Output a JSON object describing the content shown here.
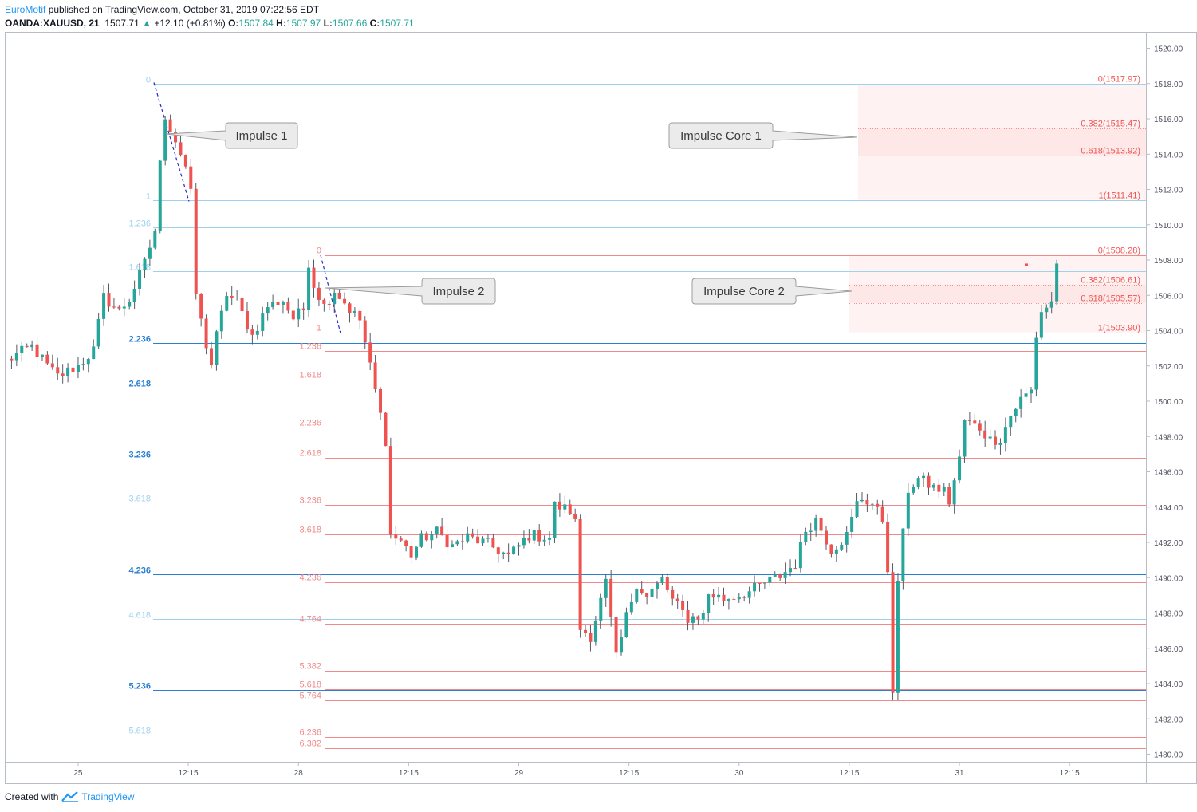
{
  "header": {
    "publisher": "EuroMotif",
    "published_text": " published on TradingView.com, October 31, 2019 07:22:56 EDT",
    "symbol": "OANDA:XAUUSD, 21",
    "last": "1507.71",
    "change": "+12.10 (+0.81%)",
    "o_label": "O:",
    "o": "1507.84",
    "h_label": "H:",
    "h": "1507.97",
    "l_label": "L:",
    "l": "1507.66",
    "c_label": "C:",
    "c": "1507.71"
  },
  "footer": {
    "created_with": "Created with",
    "brand": "TradingView"
  },
  "colors": {
    "up": "#26a69a",
    "down": "#ef5350",
    "fib1_strong": "#2a7fd0",
    "fib1_light": "#9fd1ef",
    "fib2": "#f08a8a",
    "core_fill": "#fde7e7"
  },
  "chart_data": {
    "type": "candlestick",
    "ylim": [
      1479.5,
      1520.5
    ],
    "y_ticks": [
      "1480.00",
      "1482.00",
      "1484.00",
      "1486.00",
      "1488.00",
      "1490.00",
      "1492.00",
      "1494.00",
      "1496.00",
      "1498.00",
      "1500.00",
      "1502.00",
      "1504.00",
      "1506.00",
      "1508.00",
      "1510.00",
      "1512.00",
      "1514.00",
      "1516.00",
      "1518.00",
      "1520.00"
    ],
    "x_ticks": [
      "25",
      "12:15",
      "28",
      "12:15",
      "29",
      "12:15",
      "30",
      "12:15",
      "31",
      "12:15"
    ],
    "fib_impulse_1": {
      "color_strong": "#2a7fd0",
      "color_light": "#9fd1ef",
      "levels": [
        {
          "label": "0",
          "price": 1517.97,
          "strong": false
        },
        {
          "label": "1",
          "price": 1511.41,
          "strong": false
        },
        {
          "label": "1.236",
          "price": 1509.86,
          "strong": false
        },
        {
          "label": "1.618",
          "price": 1507.36,
          "strong": false
        },
        {
          "label": "2.236",
          "price": 1503.3,
          "strong": true
        },
        {
          "label": "2.618",
          "price": 1500.79,
          "strong": true
        },
        {
          "label": "3.236",
          "price": 1496.74,
          "strong": true
        },
        {
          "label": "3.618",
          "price": 1494.24,
          "strong": false
        },
        {
          "label": "4.236",
          "price": 1490.18,
          "strong": true
        },
        {
          "label": "4.618",
          "price": 1487.67,
          "strong": false
        },
        {
          "label": "5.236",
          "price": 1483.62,
          "strong": true
        },
        {
          "label": "5.618",
          "price": 1481.11,
          "strong": false
        }
      ]
    },
    "fib_impulse_2": {
      "color": "#f08a8a",
      "levels": [
        {
          "label": "0",
          "price": 1508.28
        },
        {
          "label": "1",
          "price": 1503.9
        },
        {
          "label": "1.236",
          "price": 1502.87
        },
        {
          "label": "1.618",
          "price": 1501.2
        },
        {
          "label": "2.236",
          "price": 1498.49
        },
        {
          "label": "2.618",
          "price": 1496.81
        },
        {
          "label": "3.236",
          "price": 1494.11
        },
        {
          "label": "3.618",
          "price": 1492.43
        },
        {
          "label": "4.236",
          "price": 1489.73
        },
        {
          "label": "4.764",
          "price": 1487.41
        },
        {
          "label": "5.382",
          "price": 1484.71
        },
        {
          "label": "5.618",
          "price": 1483.67
        },
        {
          "label": "5.764",
          "price": 1483.03
        },
        {
          "label": "6.236",
          "price": 1480.97
        },
        {
          "label": "6.382",
          "price": 1480.33
        }
      ]
    },
    "core_1": [
      {
        "label": "0(1517.97)",
        "price": 1517.97
      },
      {
        "label": "0.382(1515.47)",
        "price": 1515.47
      },
      {
        "label": "0.618(1513.92)",
        "price": 1513.92
      },
      {
        "label": "1(1511.41)",
        "price": 1511.41
      }
    ],
    "core_2": [
      {
        "label": "0(1508.28)",
        "price": 1508.28
      },
      {
        "label": "0.382(1506.61)",
        "price": 1506.61
      },
      {
        "label": "0.618(1505.57)",
        "price": 1505.57
      },
      {
        "label": "1(1503.90)",
        "price": 1503.9
      }
    ],
    "callouts": [
      "Impulse 1",
      "Impulse 2",
      "Impulse Core 1",
      "Impulse Core 2"
    ],
    "anchors": [
      {
        "label": "25",
        "candle": 14
      },
      {
        "label": "28",
        "candle": 57
      },
      {
        "label": "29",
        "candle": 100
      },
      {
        "label": "30",
        "candle": 143
      },
      {
        "label": "31",
        "candle": 186
      }
    ],
    "price_path": [
      [
        0,
        1502.3
      ],
      [
        5,
        1503.1
      ],
      [
        8,
        1502.0
      ],
      [
        10,
        1501.4
      ],
      [
        14,
        1502.0
      ],
      [
        17,
        1502.9
      ],
      [
        19,
        1505.9
      ],
      [
        22,
        1505.1
      ],
      [
        24,
        1505.8
      ],
      [
        27,
        1507.8
      ],
      [
        29,
        1509.7
      ],
      [
        30,
        1513.4
      ],
      [
        31,
        1516.2
      ],
      [
        33,
        1514.8
      ],
      [
        35,
        1513.3
      ],
      [
        36,
        1511.7
      ],
      [
        37,
        1506.1
      ],
      [
        38,
        1504.5
      ],
      [
        39,
        1503.2
      ],
      [
        40,
        1502.1
      ],
      [
        41,
        1503.7
      ],
      [
        43,
        1506.1
      ],
      [
        45,
        1505.6
      ],
      [
        48,
        1503.7
      ],
      [
        51,
        1505.4
      ],
      [
        54,
        1505.7
      ],
      [
        56,
        1504.7
      ],
      [
        58,
        1505.2
      ],
      [
        59,
        1507.9
      ],
      [
        60,
        1506.6
      ],
      [
        62,
        1505.4
      ],
      [
        64,
        1506.3
      ],
      [
        66,
        1505.6
      ],
      [
        67,
        1505.2
      ],
      [
        69,
        1504.6
      ],
      [
        70,
        1503.3
      ],
      [
        72,
        1500.6
      ],
      [
        74,
        1497.8
      ],
      [
        75,
        1492.4
      ],
      [
        77,
        1492.1
      ],
      [
        79,
        1491.3
      ],
      [
        81,
        1492.2
      ],
      [
        84,
        1492.6
      ],
      [
        87,
        1491.8
      ],
      [
        90,
        1492.3
      ],
      [
        94,
        1491.9
      ],
      [
        98,
        1491.2
      ],
      [
        102,
        1492.4
      ],
      [
        106,
        1492.3
      ],
      [
        107,
        1494.1
      ],
      [
        110,
        1493.8
      ],
      [
        111,
        1493.1
      ],
      [
        112,
        1487.1
      ],
      [
        114,
        1486.7
      ],
      [
        117,
        1489.7
      ],
      [
        119,
        1485.4
      ],
      [
        121,
        1487.8
      ],
      [
        123,
        1489.7
      ],
      [
        125,
        1488.9
      ],
      [
        128,
        1489.9
      ],
      [
        130,
        1488.7
      ],
      [
        133,
        1487.7
      ],
      [
        136,
        1487.9
      ],
      [
        137,
        1489.1
      ],
      [
        140,
        1488.8
      ],
      [
        145,
        1489.2
      ],
      [
        148,
        1489.7
      ],
      [
        151,
        1490.1
      ],
      [
        154,
        1490.8
      ],
      [
        156,
        1492.7
      ],
      [
        158,
        1493.3
      ],
      [
        161,
        1491.6
      ],
      [
        164,
        1492.4
      ],
      [
        166,
        1494.2
      ],
      [
        167,
        1494.5
      ],
      [
        169,
        1494.2
      ],
      [
        171,
        1493.3
      ],
      [
        172,
        1490.6
      ],
      [
        173,
        1483.2
      ],
      [
        174,
        1489.9
      ],
      [
        176,
        1495.0
      ],
      [
        178,
        1495.6
      ],
      [
        181,
        1495.1
      ],
      [
        183,
        1494.9
      ],
      [
        184,
        1494.3
      ],
      [
        186,
        1496.7
      ],
      [
        187,
        1498.9
      ],
      [
        190,
        1498.5
      ],
      [
        192,
        1497.8
      ],
      [
        194,
        1497.9
      ],
      [
        196,
        1499.2
      ],
      [
        198,
        1500.1
      ],
      [
        200,
        1500.6
      ],
      [
        201,
        1503.7
      ],
      [
        202,
        1505.1
      ],
      [
        204,
        1505.6
      ],
      [
        205,
        1507.8
      ]
    ]
  }
}
